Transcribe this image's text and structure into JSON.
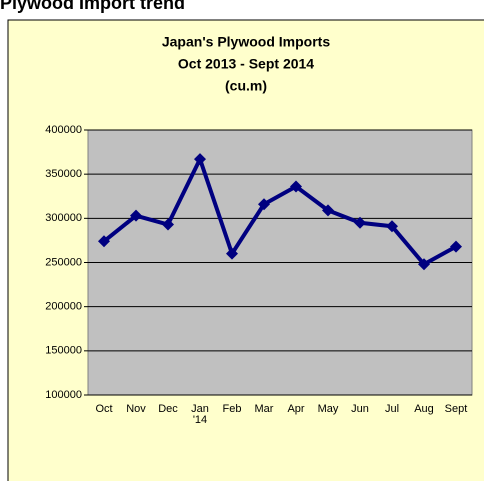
{
  "header": "Plywood Import trend",
  "chart_data": {
    "type": "line",
    "title": [
      "Japan's Plywood Imports",
      "Oct  2013 - Sept 2014",
      "(cu.m)"
    ],
    "categories": [
      "Oct",
      "Nov",
      "Dec",
      "Jan\n'14",
      "Feb",
      "Mar",
      "Apr",
      "May",
      "Jun",
      "Jul",
      "Aug",
      "Sept"
    ],
    "series": [
      {
        "name": "Plywood Imports",
        "color": "#000080",
        "values": [
          274000,
          303000,
          293000,
          367000,
          260000,
          316000,
          336000,
          309000,
          295000,
          291000,
          248000,
          268000
        ]
      }
    ],
    "ylim": [
      100000,
      400000
    ],
    "yticks": [
      100000,
      150000,
      200000,
      250000,
      300000,
      350000,
      400000
    ],
    "grid": true
  }
}
